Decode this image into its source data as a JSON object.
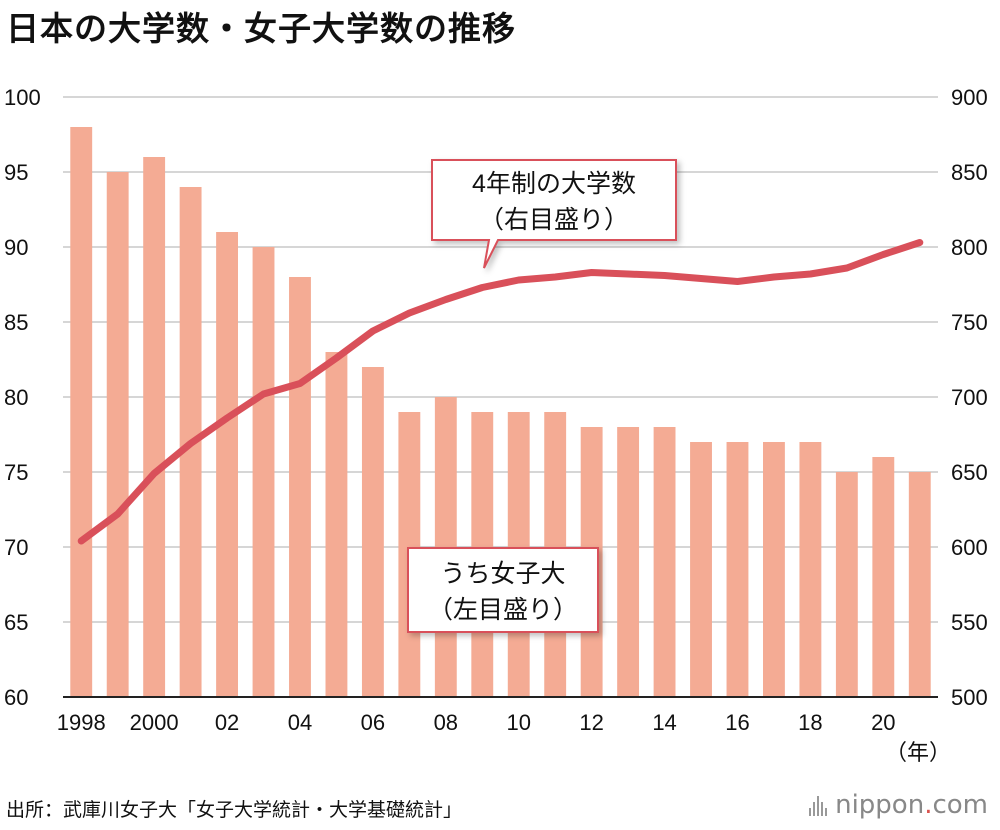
{
  "title": "日本の大学数・女子大学数の推移",
  "source": "出所：武庫川女子大「女子大学統計・大学基礎統計」",
  "logo": {
    "name": "nippon",
    "dot": ".",
    "tld": "com"
  },
  "colors": {
    "bars": "#f4ab94",
    "line": "#d9505a",
    "grid": "#c8c8c8",
    "callout_border": "#d9505a"
  },
  "chart_data": {
    "type": "bar+line",
    "title": "日本の大学数・女子大学数の推移",
    "x_unit_label": "（年）",
    "categories": [
      "1998",
      "1999",
      "2000",
      "2001",
      "2002",
      "2003",
      "2004",
      "2005",
      "2006",
      "2007",
      "2008",
      "2009",
      "2010",
      "2011",
      "2012",
      "2013",
      "2014",
      "2015",
      "2016",
      "2017",
      "2018",
      "2019",
      "2020",
      "2021"
    ],
    "x_tick_labels": [
      "1998",
      "",
      "2000",
      "",
      "02",
      "",
      "04",
      "",
      "06",
      "",
      "08",
      "",
      "10",
      "",
      "12",
      "",
      "14",
      "",
      "16",
      "",
      "18",
      "",
      "20",
      ""
    ],
    "left_axis": {
      "ylim": [
        60,
        100
      ],
      "ticks": [
        60,
        65,
        70,
        75,
        80,
        85,
        90,
        95,
        100
      ]
    },
    "right_axis": {
      "ylim": [
        500,
        900
      ],
      "ticks": [
        500,
        550,
        600,
        650,
        700,
        750,
        800,
        850,
        900
      ]
    },
    "series": [
      {
        "name": "うち女子大",
        "label_line1": "うち女子大",
        "label_line2": "（左目盛り）",
        "axis": "left",
        "type": "bar",
        "values": [
          98,
          95,
          96,
          94,
          91,
          90,
          88,
          83,
          82,
          79,
          80,
          79,
          79,
          79,
          78,
          78,
          78,
          77,
          77,
          77,
          77,
          75,
          76,
          75
        ]
      },
      {
        "name": "4年制の大学数",
        "label_line1": "4年制の大学数",
        "label_line2": "（右目盛り）",
        "axis": "right",
        "type": "line",
        "values": [
          604,
          622,
          649,
          669,
          686,
          702,
          709,
          726,
          744,
          756,
          765,
          773,
          778,
          780,
          783,
          782,
          781,
          779,
          777,
          780,
          782,
          786,
          795,
          803
        ]
      }
    ]
  }
}
